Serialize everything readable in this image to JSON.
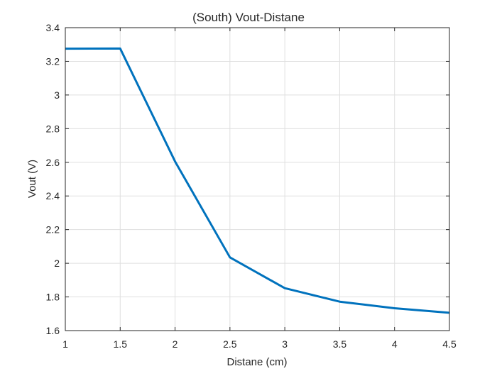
{
  "chart_data": {
    "type": "line",
    "title": "(South) Vout-Distane",
    "xlabel": "Distane (cm)",
    "ylabel": "Vout (V)",
    "xlim": [
      1,
      4.5
    ],
    "ylim": [
      1.6,
      3.4
    ],
    "xticks": [
      "1",
      "1.5",
      "2",
      "2.5",
      "3",
      "3.5",
      "4",
      "4.5"
    ],
    "yticks": [
      "1.6",
      "1.8",
      "2",
      "2.2",
      "2.4",
      "2.6",
      "2.8",
      "3",
      "3.2",
      "3.4"
    ],
    "grid": true,
    "series": [
      {
        "color": "#0072BD",
        "x": [
          1,
          1.5,
          2,
          2.5,
          3,
          3.5,
          4,
          4.5
        ],
        "y": [
          3.275,
          3.276,
          2.605,
          2.035,
          1.852,
          1.772,
          1.733,
          1.706
        ]
      }
    ]
  }
}
